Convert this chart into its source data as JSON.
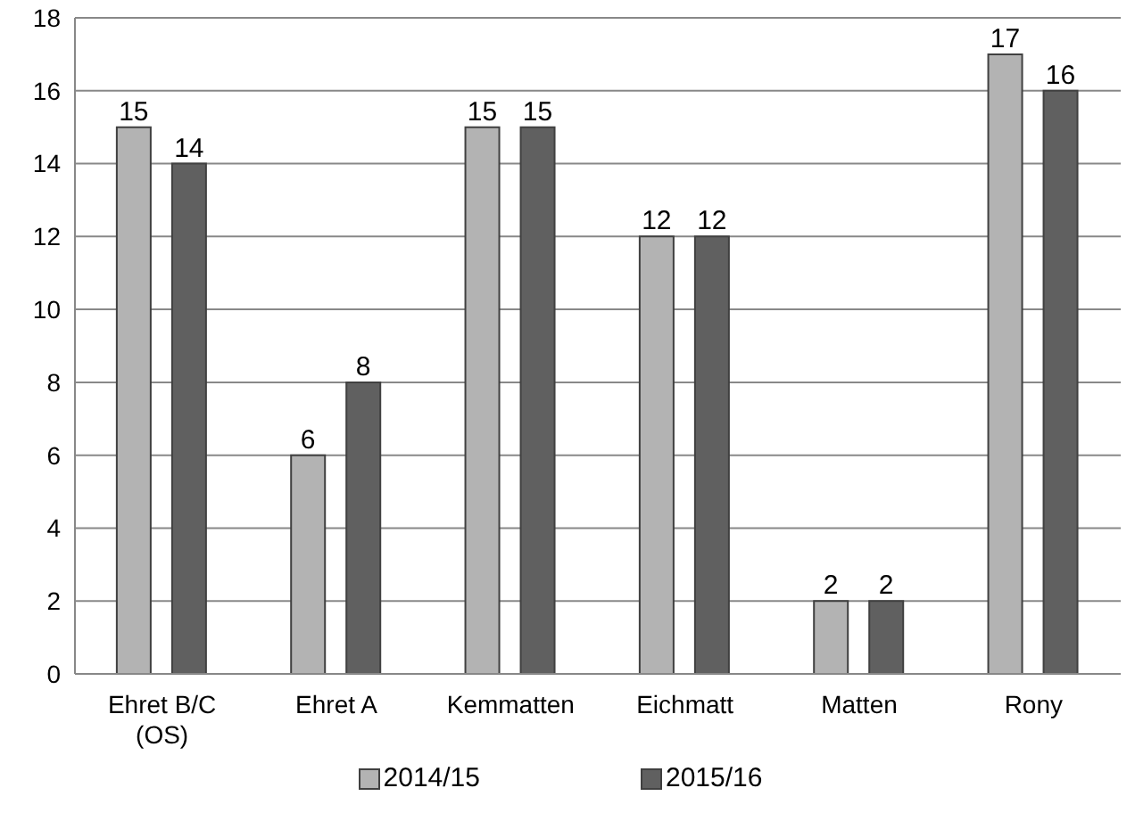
{
  "chart_data": {
    "type": "bar",
    "categories": [
      "Ehret B/C (OS)",
      "Ehret A",
      "Kemmatten",
      "Eichmatt",
      "Matten",
      "Rony"
    ],
    "series": [
      {
        "name": "2014/15",
        "color": "#b3b3b3",
        "values": [
          15,
          6,
          15,
          12,
          2,
          17
        ]
      },
      {
        "name": "2015/16",
        "color": "#606060",
        "values": [
          14,
          8,
          15,
          12,
          2,
          16
        ]
      }
    ],
    "ylim": [
      0,
      18
    ],
    "yticks": [
      0,
      2,
      4,
      6,
      8,
      10,
      12,
      14,
      16,
      18
    ],
    "grid": "y",
    "legend": "bottom",
    "data_labels": true
  }
}
